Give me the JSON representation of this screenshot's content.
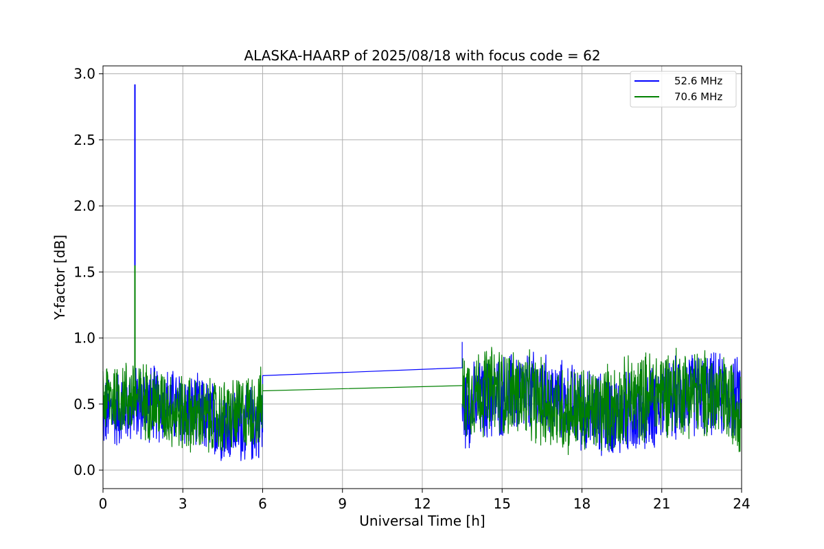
{
  "chart_data": {
    "type": "line",
    "title": "ALASKA-HAARP of 2025/08/18 with focus code = 62",
    "xlabel": "Universal Time [h]",
    "ylabel": "Y-factor [dB]",
    "xlim": [
      0,
      24
    ],
    "ylim": [
      -0.14,
      3.06
    ],
    "xticks": [
      0,
      3,
      6,
      9,
      12,
      15,
      18,
      21,
      24
    ],
    "yticks": [
      0.0,
      0.5,
      1.0,
      1.5,
      2.0,
      2.5,
      3.0
    ],
    "xtick_labels": [
      "0",
      "3",
      "6",
      "9",
      "12",
      "15",
      "18",
      "21",
      "24"
    ],
    "ytick_labels": [
      "0.0",
      "0.5",
      "1.0",
      "1.5",
      "2.0",
      "2.5",
      "3.0"
    ],
    "grid": true,
    "legend_position": "top-right",
    "series": [
      {
        "name": "52.6 MHz",
        "color": "#0000ff",
        "segments": [
          {
            "x_range": [
              0.0,
              6.0
            ],
            "low": 0.1,
            "high": 0.75,
            "description_only_shown_as_noise": true
          },
          {
            "x_range": [
              13.5,
              24.0
            ],
            "low": 0.15,
            "high": 0.85
          }
        ],
        "spikes": [
          {
            "x": 1.2,
            "y": 2.92
          }
        ],
        "gap_line": {
          "x": [
            6.0,
            13.5
          ],
          "y": [
            0.715,
            0.775
          ]
        },
        "spike_at_resume": {
          "x": 13.5,
          "y": 0.97
        }
      },
      {
        "name": "70.6 MHz",
        "color": "#008000",
        "segments": [
          {
            "x_range": [
              0.0,
              6.0
            ],
            "low": 0.15,
            "high": 0.8
          },
          {
            "x_range": [
              13.5,
              24.0
            ],
            "low": 0.15,
            "high": 0.9
          }
        ],
        "spikes": [
          {
            "x": 1.2,
            "y": 1.55
          }
        ],
        "gap_line": {
          "x": [
            6.0,
            13.5
          ],
          "y": [
            0.6,
            0.64
          ]
        }
      }
    ]
  }
}
